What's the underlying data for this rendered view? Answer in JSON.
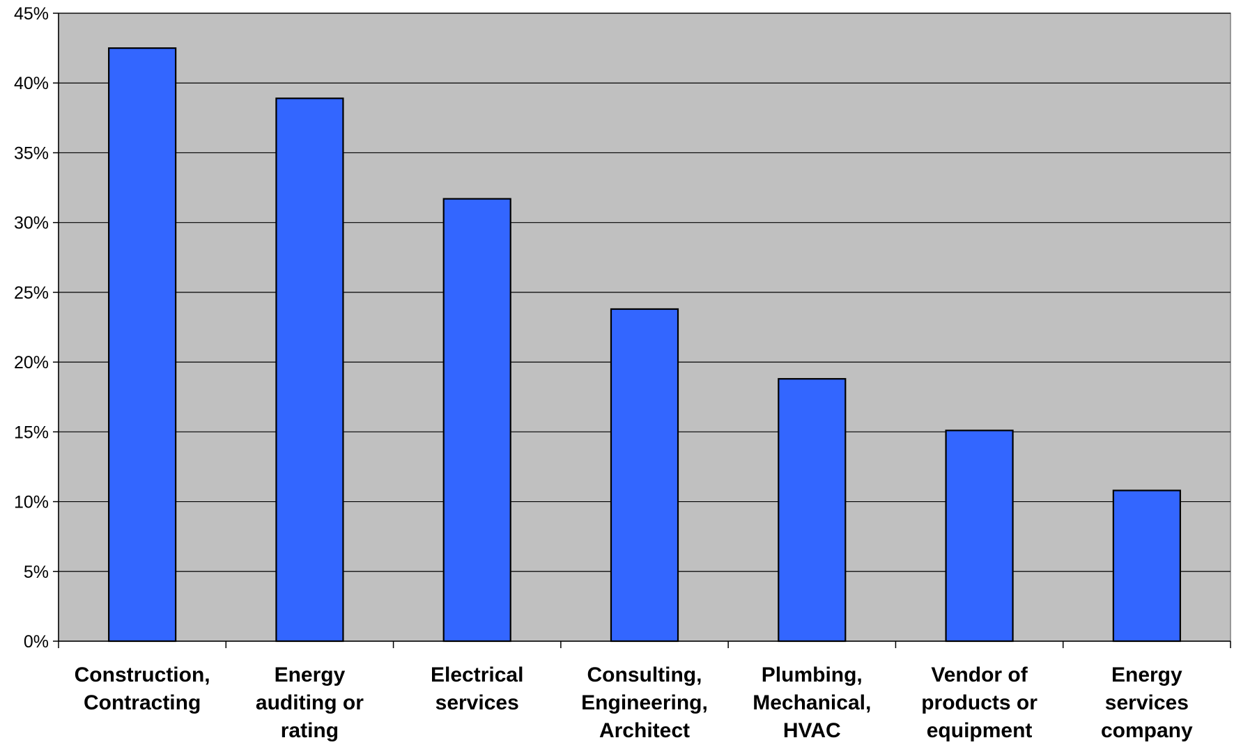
{
  "chart_data": {
    "type": "bar",
    "title": "",
    "xlabel": "",
    "ylabel": "",
    "categories": [
      [
        "Construction,",
        "Contracting"
      ],
      [
        "Energy",
        "auditing or",
        "rating"
      ],
      [
        "Electrical",
        "services"
      ],
      [
        "Consulting,",
        "Engineering,",
        "Architect"
      ],
      [
        "Plumbing,",
        "Mechanical,",
        "HVAC"
      ],
      [
        "Vendor of",
        "products or",
        "equipment"
      ],
      [
        "Energy",
        "services",
        "company"
      ]
    ],
    "values": [
      42.5,
      38.9,
      31.7,
      23.8,
      18.8,
      15.1,
      10.8
    ],
    "ylim": [
      0,
      45
    ],
    "yticks": [
      0,
      5,
      10,
      15,
      20,
      25,
      30,
      35,
      40,
      45
    ],
    "ytick_labels": [
      "0%",
      "5%",
      "10%",
      "15%",
      "20%",
      "25%",
      "30%",
      "35%",
      "40%",
      "45%"
    ],
    "grid": true,
    "legend": "none",
    "colors": {
      "bar_fill": "#3366FF",
      "bar_stroke": "#000000",
      "plot_background": "#C0C0C0",
      "gridline": "#000000",
      "axis": "#000000",
      "plot_border": "#808080"
    }
  }
}
